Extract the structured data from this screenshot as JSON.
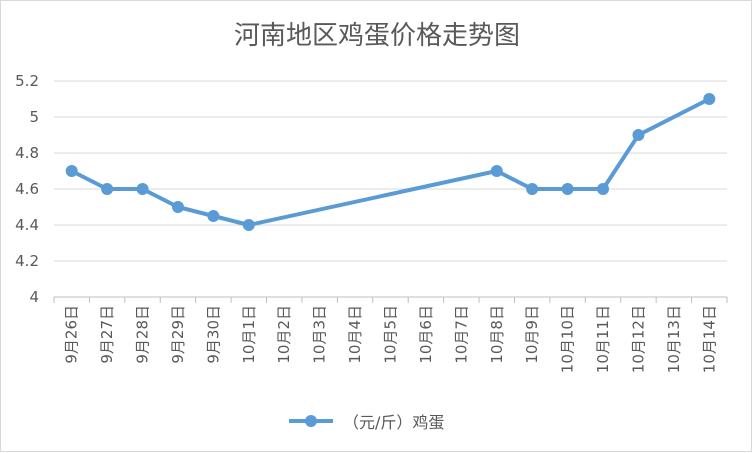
{
  "chart_data": {
    "type": "line",
    "title": "河南地区鸡蛋价格走势图",
    "categories": [
      "9月26日",
      "9月27日",
      "9月28日",
      "9月29日",
      "9月30日",
      "10月1日",
      "10月2日",
      "10月3日",
      "10月4日",
      "10月5日",
      "10月6日",
      "10月7日",
      "10月8日",
      "10月9日",
      "10月10日",
      "10月11日",
      "10月12日",
      "10月13日",
      "10月14日"
    ],
    "ylim": [
      4,
      5.2
    ],
    "yticks": [
      "4",
      "4.2",
      "4.4",
      "4.6",
      "4.8",
      "5",
      "5.2"
    ],
    "gridlines": true,
    "legend_position": "bottom",
    "series": [
      {
        "name": "（元/斤）鸡蛋",
        "color": "#5b9bd5",
        "values": [
          4.7,
          4.6,
          4.6,
          4.5,
          4.45,
          4.4,
          null,
          null,
          null,
          null,
          null,
          null,
          4.7,
          4.6,
          4.6,
          4.6,
          4.9,
          null,
          5.1
        ]
      }
    ]
  }
}
